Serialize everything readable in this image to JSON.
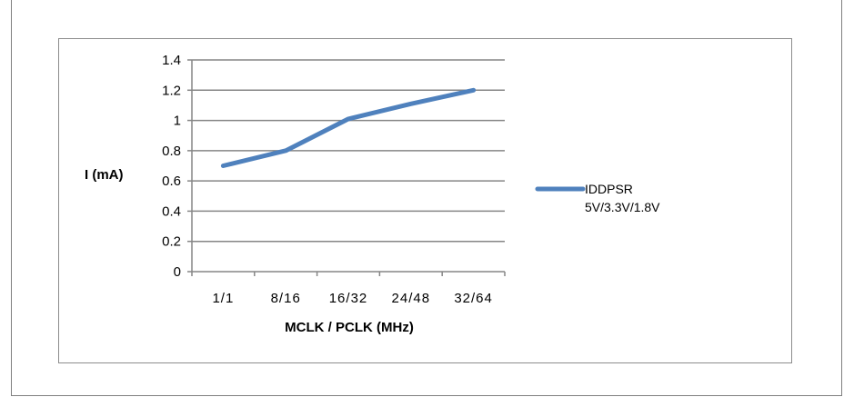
{
  "chart_data": {
    "type": "line",
    "title": "",
    "xlabel": "MCLK / PCLK (MHz)",
    "ylabel": "I (mA)",
    "categories": [
      "1/1",
      "8/16",
      "16/32",
      "24/48",
      "32/64"
    ],
    "ylim": [
      0,
      1.4
    ],
    "yticks": [
      "0",
      "0.2",
      "0.4",
      "0.6",
      "0.8",
      "1",
      "1.2",
      "1.4"
    ],
    "grid": true,
    "legend_position": "right",
    "series": [
      {
        "name_line1": "IDDPSR",
        "name_line2": "5V/3.3V/1.8V",
        "color": "#4f81bd",
        "values": [
          0.7,
          0.8,
          1.01,
          1.11,
          1.2
        ]
      }
    ]
  }
}
